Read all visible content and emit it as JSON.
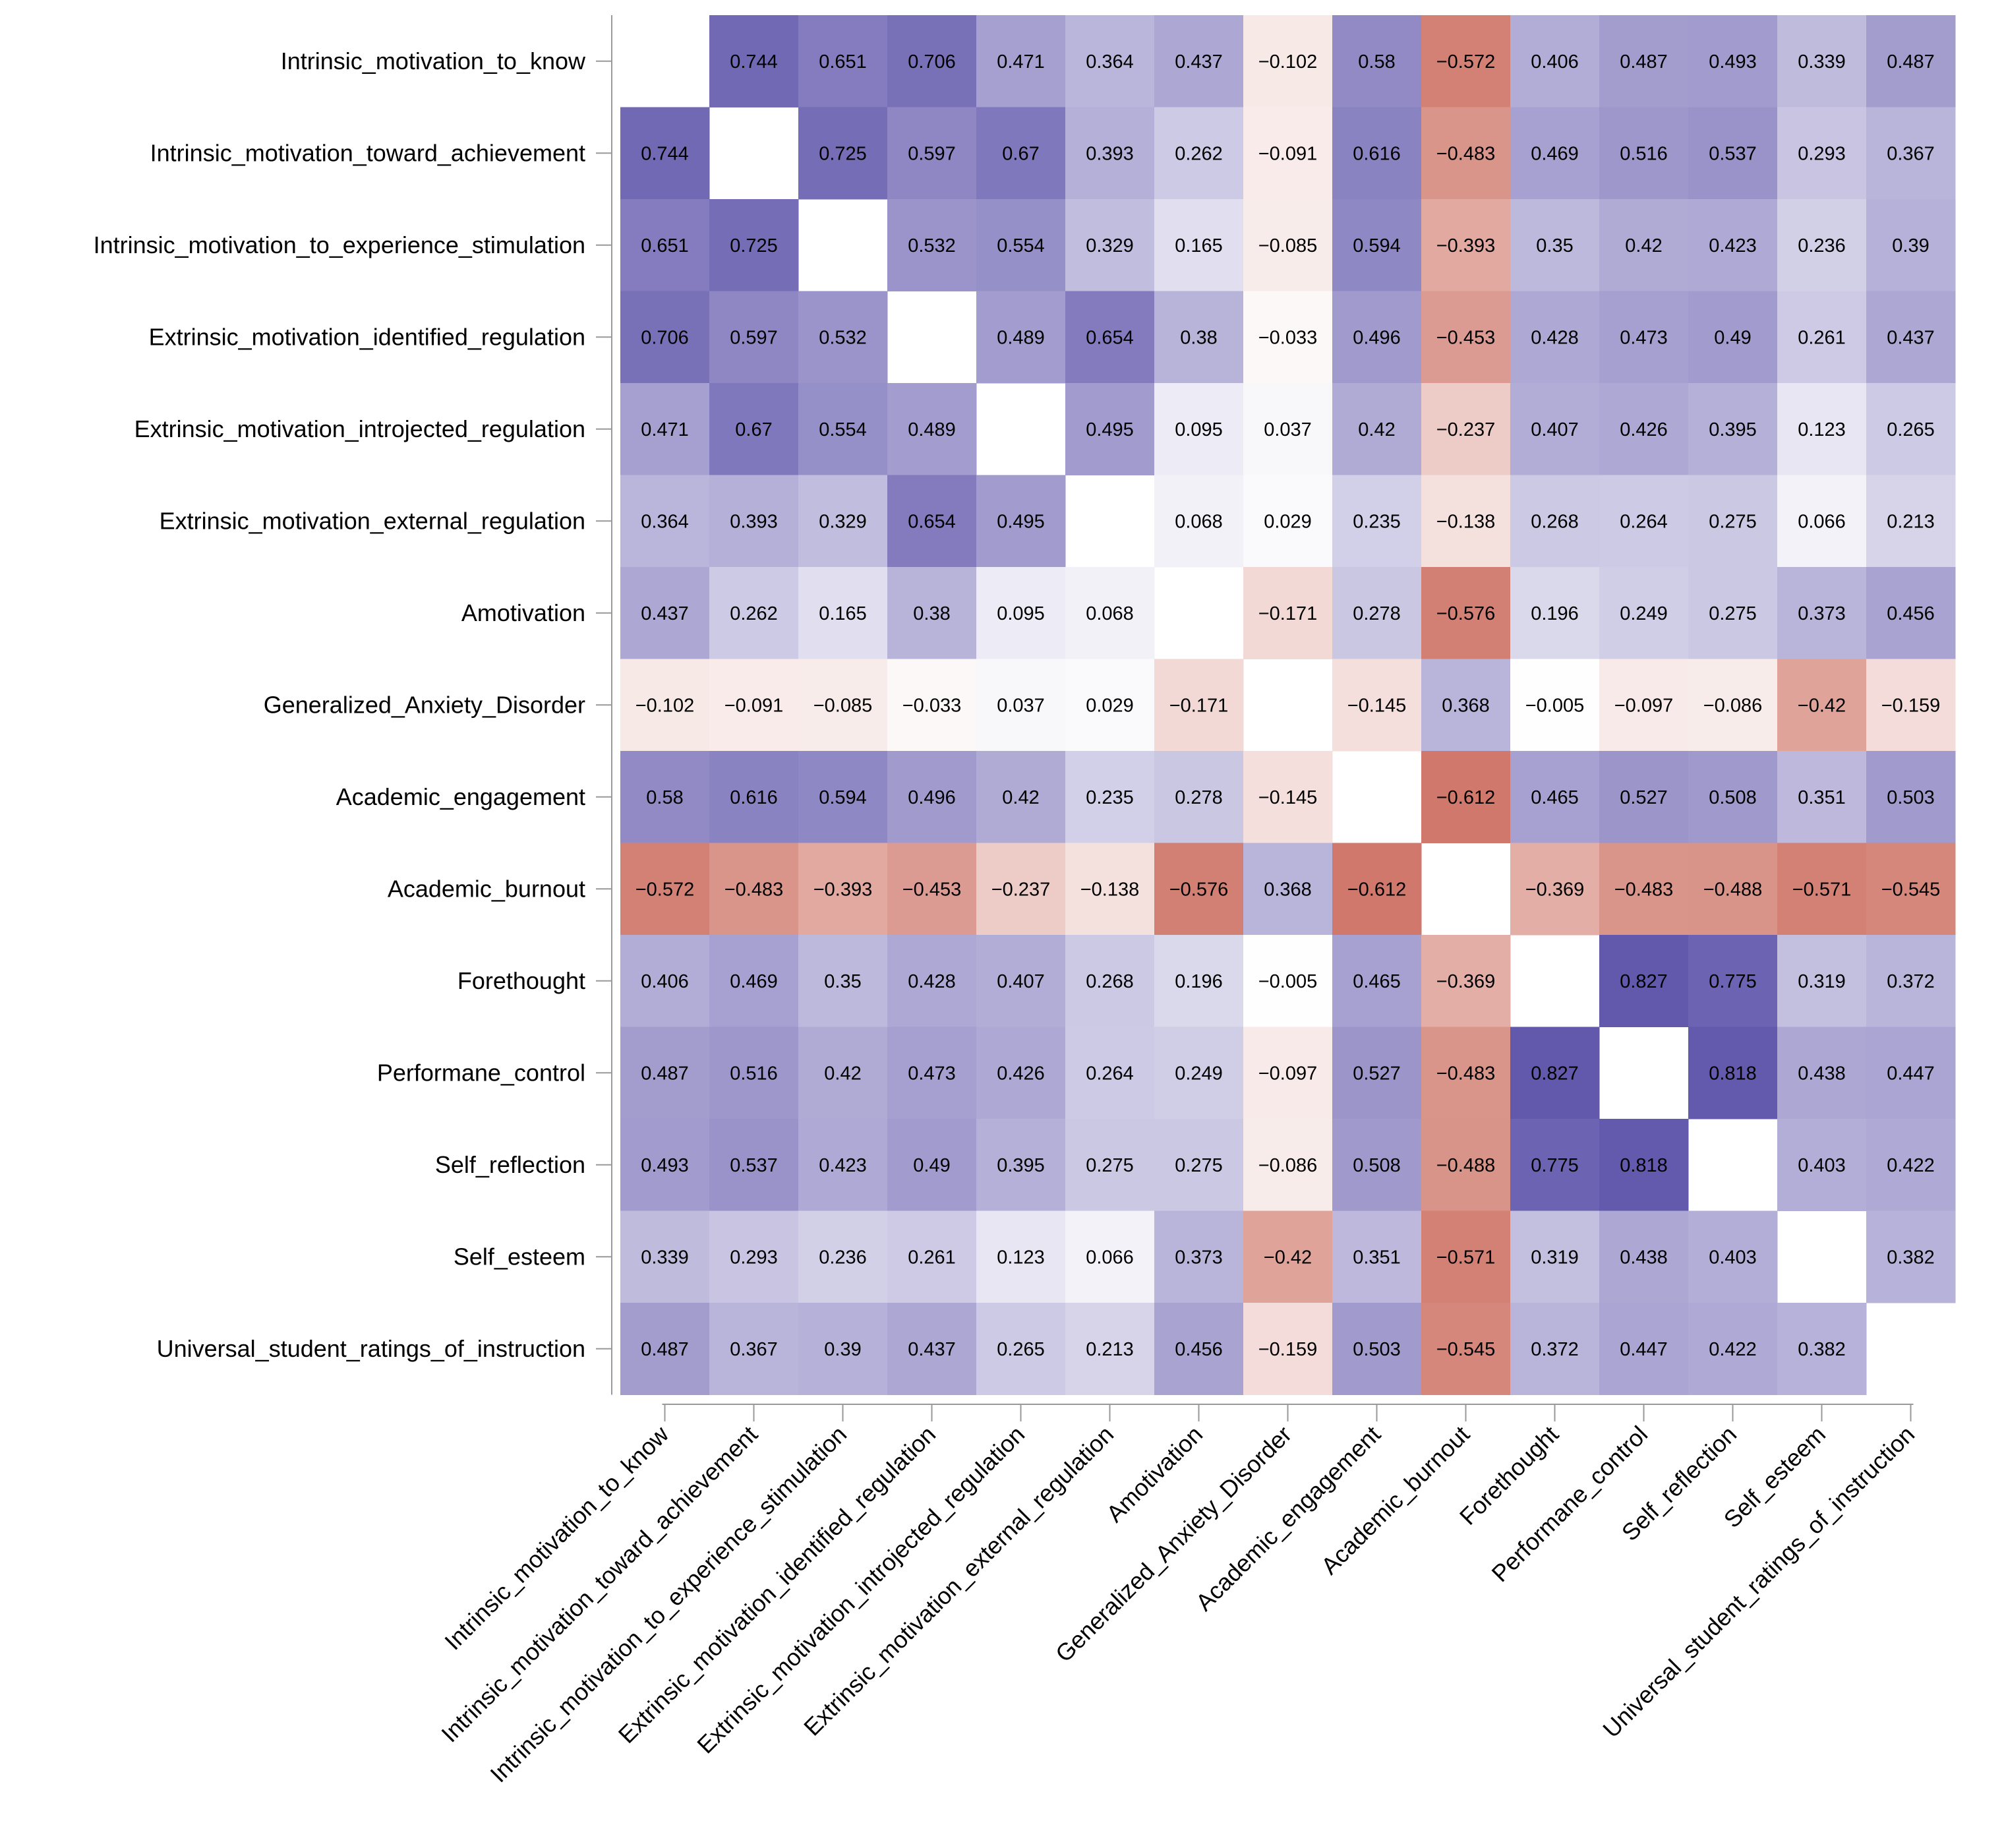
{
  "chart_data": {
    "type": "heatmap",
    "title": "",
    "labels": [
      "Intrinsic_motivation_to_know",
      "Intrinsic_motivation_toward_achievement",
      "Intrinsic_motivation_to_experience_stimulation",
      "Extrinsic_motivation_identified_regulation",
      "Extrinsic_motivation_introjected_regulation",
      "Extrinsic_motivation_external_regulation",
      "Amotivation",
      "Generalized_Anxiety_Disorder",
      "Academic_engagement",
      "Academic_burnout",
      "Forethought",
      "Performane_control",
      "Self_reflection",
      "Self_esteem",
      "Universal_student_ratings_of_instruction"
    ],
    "values": [
      [
        null,
        0.744,
        0.651,
        0.706,
        0.471,
        0.364,
        0.437,
        -0.102,
        0.58,
        -0.572,
        0.406,
        0.487,
        0.493,
        0.339,
        0.487
      ],
      [
        0.744,
        null,
        0.725,
        0.597,
        0.67,
        0.393,
        0.262,
        -0.091,
        0.616,
        -0.483,
        0.469,
        0.516,
        0.537,
        0.293,
        0.367
      ],
      [
        0.651,
        0.725,
        null,
        0.532,
        0.554,
        0.329,
        0.165,
        -0.085,
        0.594,
        -0.393,
        0.35,
        0.42,
        0.423,
        0.236,
        0.39
      ],
      [
        0.706,
        0.597,
        0.532,
        null,
        0.489,
        0.654,
        0.38,
        -0.033,
        0.496,
        -0.453,
        0.428,
        0.473,
        0.49,
        0.261,
        0.437
      ],
      [
        0.471,
        0.67,
        0.554,
        0.489,
        null,
        0.495,
        0.095,
        0.037,
        0.42,
        -0.237,
        0.407,
        0.426,
        0.395,
        0.123,
        0.265
      ],
      [
        0.364,
        0.393,
        0.329,
        0.654,
        0.495,
        null,
        0.068,
        0.029,
        0.235,
        -0.138,
        0.268,
        0.264,
        0.275,
        0.066,
        0.213
      ],
      [
        0.437,
        0.262,
        0.165,
        0.38,
        0.095,
        0.068,
        null,
        -0.171,
        0.278,
        -0.576,
        0.196,
        0.249,
        0.275,
        0.373,
        0.456
      ],
      [
        -0.102,
        -0.091,
        -0.085,
        -0.033,
        0.037,
        0.029,
        -0.171,
        null,
        -0.145,
        0.368,
        -0.005,
        -0.097,
        -0.086,
        -0.42,
        -0.159
      ],
      [
        0.58,
        0.616,
        0.594,
        0.496,
        0.42,
        0.235,
        0.278,
        -0.145,
        null,
        -0.612,
        0.465,
        0.527,
        0.508,
        0.351,
        0.503
      ],
      [
        -0.572,
        -0.483,
        -0.393,
        -0.453,
        -0.237,
        -0.138,
        -0.576,
        0.368,
        -0.612,
        null,
        -0.369,
        -0.483,
        -0.488,
        -0.571,
        -0.545
      ],
      [
        0.406,
        0.469,
        0.35,
        0.428,
        0.407,
        0.268,
        0.196,
        -0.005,
        0.465,
        -0.369,
        null,
        0.827,
        0.775,
        0.319,
        0.372
      ],
      [
        0.487,
        0.516,
        0.42,
        0.473,
        0.426,
        0.264,
        0.249,
        -0.097,
        0.527,
        -0.483,
        0.827,
        null,
        0.818,
        0.438,
        0.447
      ],
      [
        0.493,
        0.537,
        0.423,
        0.49,
        0.395,
        0.275,
        0.275,
        -0.086,
        0.508,
        -0.488,
        0.775,
        0.818,
        null,
        0.403,
        0.422
      ],
      [
        0.339,
        0.293,
        0.236,
        0.261,
        0.123,
        0.066,
        0.373,
        -0.42,
        0.351,
        -0.571,
        0.319,
        0.438,
        0.403,
        null,
        0.382
      ],
      [
        0.487,
        0.367,
        0.39,
        0.437,
        0.265,
        0.213,
        0.456,
        -0.159,
        0.503,
        -0.545,
        0.372,
        0.447,
        0.422,
        0.382,
        null
      ]
    ],
    "colors": {
      "positive": "#5e54aa",
      "negative": "#cd7062",
      "zero": "#ffffff"
    },
    "value_range": [
      -0.65,
      0.85
    ],
    "xlabel": "",
    "ylabel": ""
  }
}
